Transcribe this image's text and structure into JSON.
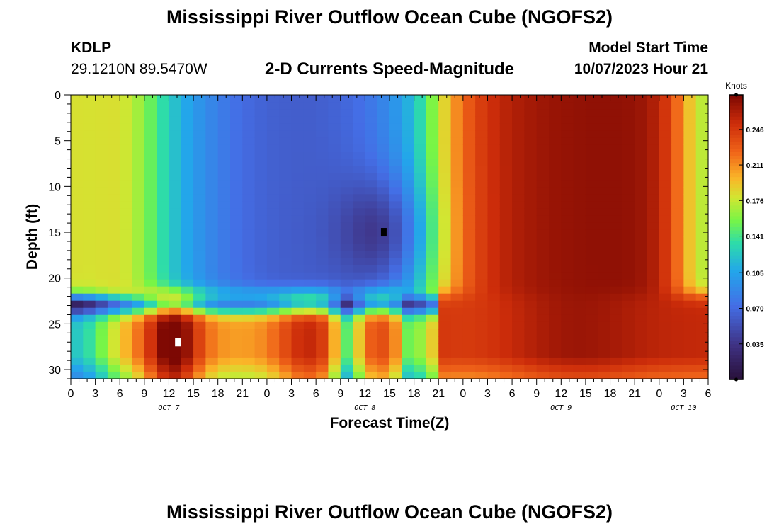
{
  "header": {
    "title": "Mississippi River Outflow Ocean Cube (NGOFS2)",
    "station_id": "KDLP",
    "station_coords": "29.1210N  89.5470W",
    "subtitle": "2-D Currents Speed-Magnitude",
    "model_start_label": "Model Start Time",
    "model_start_time": "10/07/2023 Hour 21"
  },
  "footer": {
    "title": "Mississippi River Outflow Ocean Cube (NGOFS2)"
  },
  "chart_data": {
    "type": "heatmap",
    "title": "2-D Currents Speed-Magnitude",
    "xlabel": "Forecast Time(Z)",
    "ylabel": "Depth (ft)",
    "colorbar_label": "Knots",
    "x_range_hours": [
      0,
      78
    ],
    "x_start": "2023-10-07 00Z",
    "y_range_ft": [
      0,
      31
    ],
    "y_reversed": true,
    "x_tick_labels": [
      "0",
      "3",
      "6",
      "9",
      "12",
      "15",
      "18",
      "21",
      "0",
      "3",
      "6",
      "9",
      "12",
      "15",
      "18",
      "21",
      "0",
      "3",
      "6",
      "9",
      "12",
      "15",
      "18",
      "21",
      "0",
      "3",
      "6"
    ],
    "y_tick_labels": [
      "0",
      "5",
      "10",
      "15",
      "20",
      "25",
      "30"
    ],
    "day_labels": [
      {
        "text": "OCT 7",
        "hour": 12
      },
      {
        "text": "OCT 8",
        "hour": 36
      },
      {
        "text": "OCT 9",
        "hour": 60
      },
      {
        "text": "OCT 10",
        "hour": 75
      }
    ],
    "colorbar_ticks": [
      "0.035",
      "0.070",
      "0.105",
      "0.141",
      "0.176",
      "0.211",
      "0.246"
    ],
    "value_range_knots": [
      0.0,
      0.28
    ],
    "markers": [
      {
        "type": "min",
        "hour": 38.3,
        "depth_ft": 15,
        "color": "#000000"
      },
      {
        "type": "max",
        "hour": 13.1,
        "depth_ft": 27,
        "color": "#ffffff"
      }
    ]
  }
}
